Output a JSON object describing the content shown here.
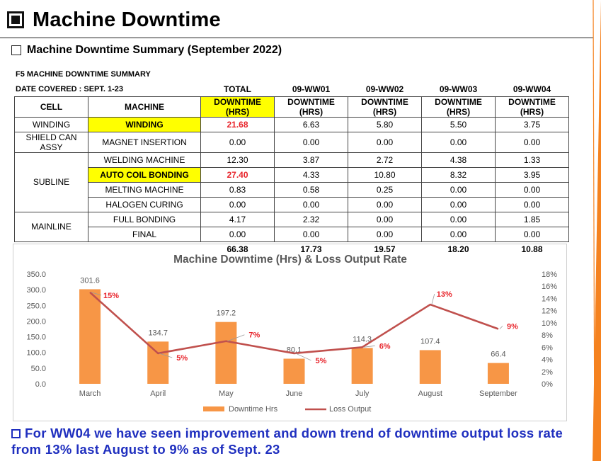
{
  "page_title": "Machine Downtime",
  "subtitle": "Machine Downtime Summary (September 2022)",
  "table": {
    "caption1": "F5 MACHINE DOWNTIME SUMMARY",
    "caption2": "DATE COVERED : SEPT. 1-23",
    "period_headers": [
      "TOTAL",
      "09-WW01",
      "09-WW02",
      "09-WW03",
      "09-WW04"
    ],
    "col_cell": "CELL",
    "col_machine": "MACHINE",
    "col_downtime": "DOWNTIME (HRS)",
    "rows": [
      {
        "cell": "WINDING",
        "machine": "WINDING",
        "values": [
          "21.68",
          "6.63",
          "5.80",
          "5.50",
          "3.75"
        ]
      },
      {
        "cell": "SHIELD CAN ASSY",
        "machine": "MAGNET INSERTION",
        "values": [
          "0.00",
          "0.00",
          "0.00",
          "0.00",
          "0.00"
        ]
      },
      {
        "cell": "SUBLINE",
        "machine": "WELDING MACHINE",
        "values": [
          "12.30",
          "3.87",
          "2.72",
          "4.38",
          "1.33"
        ]
      },
      {
        "cell": "",
        "machine": "AUTO COIL BONDING",
        "values": [
          "27.40",
          "4.33",
          "10.80",
          "8.32",
          "3.95"
        ]
      },
      {
        "cell": "",
        "machine": "MELTING MACHINE",
        "values": [
          "0.83",
          "0.58",
          "0.25",
          "0.00",
          "0.00"
        ]
      },
      {
        "cell": "",
        "machine": "HALOGEN CURING",
        "values": [
          "0.00",
          "0.00",
          "0.00",
          "0.00",
          "0.00"
        ]
      },
      {
        "cell": "MAINLINE",
        "machine": "FULL BONDING",
        "values": [
          "4.17",
          "2.32",
          "0.00",
          "0.00",
          "1.85"
        ]
      },
      {
        "cell": "",
        "machine": "FINAL",
        "values": [
          "0.00",
          "0.00",
          "0.00",
          "0.00",
          "0.00"
        ]
      }
    ],
    "totals": [
      "66.38",
      "17.73",
      "19.57",
      "18.20",
      "10.88"
    ]
  },
  "chart_data": {
    "type": "bar",
    "title": "Machine Downtime (Hrs) & Loss Output Rate",
    "categories": [
      "March",
      "April",
      "May",
      "June",
      "July",
      "August",
      "September"
    ],
    "series": [
      {
        "name": "Downtime Hrs",
        "type": "bar",
        "axis": "left",
        "values": [
          301.6,
          134.7,
          197.2,
          80.1,
          114.3,
          107.4,
          66.4
        ],
        "labels": [
          "301.6",
          "134.7",
          "197.2",
          "80.1",
          "114.3",
          "107.4",
          "66.4"
        ],
        "color": "#f79646"
      },
      {
        "name": "Loss Output",
        "type": "line",
        "axis": "right",
        "values": [
          15,
          5,
          7,
          5,
          6,
          13,
          9
        ],
        "labels": [
          "15%",
          "5%",
          "7%",
          "5%",
          "6%",
          "13%",
          "9%"
        ],
        "color": "#c0504d"
      }
    ],
    "ylim_left": [
      0,
      350
    ],
    "left_ticks": [
      "0.0",
      "50.0",
      "100.0",
      "150.0",
      "200.0",
      "250.0",
      "300.0",
      "350.0"
    ],
    "ylim_right": [
      0,
      18
    ],
    "right_ticks": [
      "0%",
      "2%",
      "4%",
      "6%",
      "8%",
      "10%",
      "12%",
      "14%",
      "16%",
      "18%"
    ],
    "legend_position": "bottom",
    "label_color": "#e8242b"
  },
  "note": "For WW04 we have seen improvement and down trend of downtime output loss rate from 13% last August to 9% as of Sept. 23",
  "colors": {
    "accent_orange": "#f79646",
    "line_red": "#c0504d",
    "highlight_yellow": "#ffff00",
    "note_blue": "#1f2fbf",
    "deco_orange": "#f5821f"
  }
}
